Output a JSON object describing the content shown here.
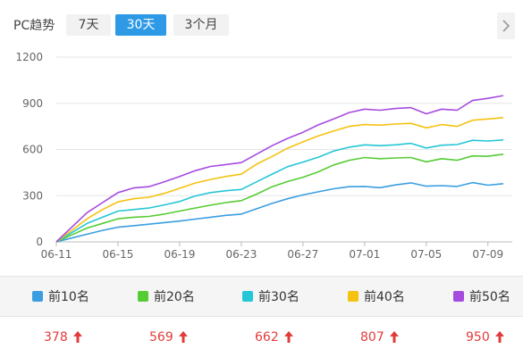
{
  "header": {
    "title": "PC趋势",
    "tabs": [
      {
        "label": "7天",
        "active": false
      },
      {
        "label": "30天",
        "active": true
      },
      {
        "label": "3个月",
        "active": false
      }
    ],
    "next_icon": "chevron-right-icon"
  },
  "colors": {
    "active_tab": "#2e9ae6",
    "increase": "#e23b3b"
  },
  "chart_data": {
    "type": "line",
    "x": [
      "06-11",
      "06-12",
      "06-13",
      "06-14",
      "06-15",
      "06-16",
      "06-17",
      "06-18",
      "06-19",
      "06-20",
      "06-21",
      "06-22",
      "06-23",
      "06-24",
      "06-25",
      "06-26",
      "06-27",
      "06-28",
      "06-29",
      "06-30",
      "07-01",
      "07-02",
      "07-03",
      "07-04",
      "07-05",
      "07-06",
      "07-07",
      "07-08",
      "07-09",
      "07-10"
    ],
    "xticks": [
      "06-11",
      "06-15",
      "06-19",
      "06-23",
      "06-27",
      "07-01",
      "07-05",
      "07-09"
    ],
    "yticks": [
      0,
      300,
      600,
      900,
      1200
    ],
    "ylim": [
      0,
      1200
    ],
    "grid": true,
    "series": [
      {
        "name": "前10名",
        "color": "#3a9ee0",
        "values": [
          0,
          25,
          50,
          75,
          95,
          105,
          115,
          125,
          135,
          148,
          160,
          172,
          180,
          215,
          250,
          280,
          305,
          325,
          345,
          358,
          360,
          352,
          370,
          383,
          362,
          365,
          360,
          385,
          368,
          378
        ]
      },
      {
        "name": "前20名",
        "color": "#55cc33",
        "values": [
          0,
          45,
          90,
          120,
          150,
          160,
          165,
          180,
          200,
          220,
          238,
          255,
          268,
          310,
          358,
          392,
          420,
          455,
          500,
          530,
          548,
          540,
          545,
          548,
          520,
          540,
          530,
          558,
          556,
          569
        ]
      },
      {
        "name": "前30名",
        "color": "#26c6d6",
        "values": [
          0,
          60,
          120,
          160,
          200,
          210,
          220,
          240,
          262,
          298,
          320,
          332,
          340,
          390,
          440,
          488,
          518,
          550,
          590,
          615,
          630,
          625,
          630,
          640,
          610,
          628,
          632,
          660,
          655,
          662
        ]
      },
      {
        "name": "前40名",
        "color": "#f5c211",
        "values": [
          0,
          75,
          150,
          210,
          260,
          280,
          290,
          315,
          348,
          382,
          405,
          425,
          440,
          505,
          555,
          608,
          650,
          688,
          720,
          750,
          762,
          758,
          765,
          770,
          740,
          762,
          750,
          790,
          798,
          807
        ]
      },
      {
        "name": "前50名",
        "color": "#a64be0",
        "values": [
          0,
          95,
          190,
          255,
          320,
          350,
          358,
          390,
          425,
          462,
          490,
          502,
          515,
          570,
          625,
          672,
          712,
          760,
          798,
          840,
          862,
          855,
          866,
          872,
          832,
          862,
          855,
          918,
          932,
          950
        ]
      }
    ]
  },
  "legend": [
    {
      "label": "前10名",
      "color": "#3a9ee0"
    },
    {
      "label": "前20名",
      "color": "#55cc33"
    },
    {
      "label": "前30名",
      "color": "#26c6d6"
    },
    {
      "label": "前40名",
      "color": "#f5c211"
    },
    {
      "label": "前50名",
      "color": "#a64be0"
    }
  ],
  "latest_values": [
    {
      "value": "378",
      "trend": "up-arrow-icon"
    },
    {
      "value": "569",
      "trend": "up-arrow-icon"
    },
    {
      "value": "662",
      "trend": "up-arrow-icon"
    },
    {
      "value": "807",
      "trend": "up-arrow-icon"
    },
    {
      "value": "950",
      "trend": "up-arrow-icon"
    }
  ]
}
